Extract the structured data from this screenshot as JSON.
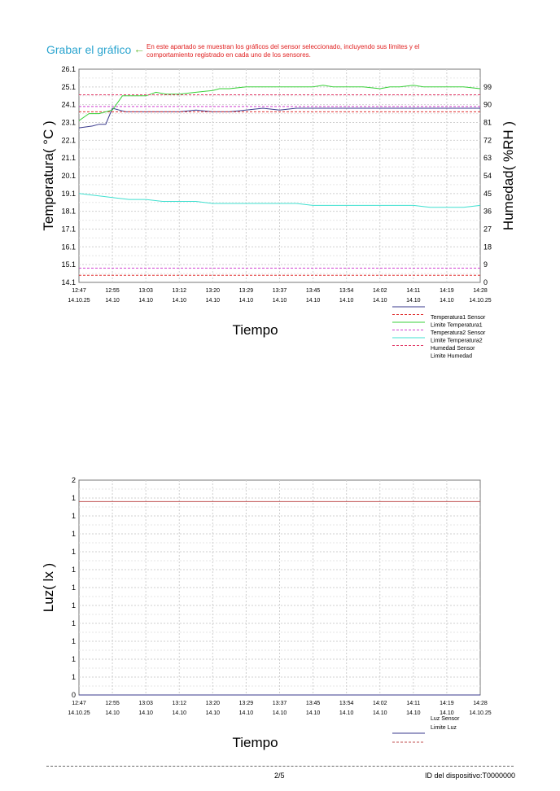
{
  "header": {
    "save_label": "Grabar el gráfico",
    "hint": "En este apartado se muestran los gráficos del sensor seleccionado, incluyendo sus límites y el comportamiento registrado en cada uno de los sensores."
  },
  "footer": {
    "page": "2/5",
    "device_id": "ID del dispositivo:T0000000"
  },
  "colors": {
    "temp1": "#3a3a8c",
    "temp1_limit": "#e03030",
    "temp2": "#3ad13a",
    "temp2_limit": "#d040d0",
    "hum": "#40e0d0",
    "hum_limit": "#e03060",
    "luz": "#3a3a8c",
    "luz_limit": "#c05050"
  },
  "chart_data": [
    {
      "type": "line",
      "xlabel": "Tiempo",
      "ylabel": "Temperatura( °C )",
      "y2label": "Humedad( %RH )",
      "ylim": [
        14.1,
        26.1
      ],
      "y2lim": [
        0,
        108
      ],
      "yticks": [
        "14.1",
        "15.1",
        "16.1",
        "17.1",
        "18.1",
        "19.1",
        "20.1",
        "21.1",
        "22.1",
        "23.1",
        "24.1",
        "25.1",
        "26.1"
      ],
      "y2ticks": [
        "0",
        "9",
        "18",
        "27",
        "36",
        "45",
        "54",
        "63",
        "72",
        "81",
        "90",
        "99"
      ],
      "xticks": [
        {
          "time": "12:47",
          "date": "14.10.25"
        },
        {
          "time": "12:55",
          "date": "14.10"
        },
        {
          "time": "13:03",
          "date": "14.10"
        },
        {
          "time": "13:12",
          "date": "14.10"
        },
        {
          "time": "13:20",
          "date": "14.10"
        },
        {
          "time": "13:29",
          "date": "14.10"
        },
        {
          "time": "13:37",
          "date": "14.10"
        },
        {
          "time": "13:45",
          "date": "14.10"
        },
        {
          "time": "13:54",
          "date": "14.10"
        },
        {
          "time": "14:02",
          "date": "14.10"
        },
        {
          "time": "14:11",
          "date": "14.10"
        },
        {
          "time": "14:19",
          "date": "14.10"
        },
        {
          "time": "14:28",
          "date": "14.10.25"
        }
      ],
      "grid": true,
      "legend": [
        "Temperatura1 Sensor",
        "Limite Temperatura1",
        "Temperatura2 Sensor",
        "Limite Temperatura2",
        "Humedad Sensor",
        "Limite Humedad"
      ],
      "series": [
        {
          "key": "temp1",
          "axis": "left",
          "style": "solid",
          "x": [
            0,
            0.4,
            0.6,
            0.8,
            1,
            1.2,
            1.4,
            1.6,
            2,
            2.5,
            3,
            3.5,
            4,
            4.5,
            5,
            5.5,
            6,
            6.5,
            7,
            7.5,
            8,
            8.5,
            9,
            9.5,
            10,
            10.5,
            11,
            11.5,
            12
          ],
          "y": [
            22.8,
            22.9,
            23.0,
            23.0,
            23.9,
            23.8,
            23.7,
            23.7,
            23.7,
            23.7,
            23.7,
            23.8,
            23.7,
            23.7,
            23.8,
            23.9,
            23.8,
            23.9,
            23.9,
            23.9,
            23.9,
            23.9,
            23.9,
            23.9,
            23.9,
            23.9,
            23.9,
            23.9,
            23.9
          ]
        },
        {
          "key": "temp1_limit",
          "axis": "left",
          "style": "dashed",
          "x": [
            0,
            12
          ],
          "y": [
            23.7,
            23.7
          ]
        },
        {
          "key": "temp2",
          "axis": "left",
          "style": "solid",
          "x": [
            0,
            0.3,
            0.6,
            1,
            1.3,
            1.6,
            2,
            2.3,
            2.6,
            3,
            3.5,
            4,
            4.2,
            4.5,
            5,
            5.5,
            6,
            6.5,
            7,
            7.3,
            7.6,
            8,
            8.5,
            9,
            9.3,
            9.6,
            10,
            10.3,
            10.6,
            11,
            11.5,
            12
          ],
          "y": [
            23.2,
            23.6,
            23.6,
            23.8,
            24.6,
            24.6,
            24.6,
            24.8,
            24.7,
            24.7,
            24.8,
            24.9,
            25.0,
            25.0,
            25.1,
            25.1,
            25.1,
            25.1,
            25.1,
            25.2,
            25.1,
            25.1,
            25.1,
            25.0,
            25.1,
            25.1,
            25.2,
            25.1,
            25.1,
            25.1,
            25.1,
            25.0
          ]
        },
        {
          "key": "temp2_limit",
          "axis": "left",
          "style": "dashed",
          "x": [
            0,
            12
          ],
          "y": [
            24.0,
            24.0
          ]
        },
        {
          "key": "hum",
          "axis": "right",
          "style": "solid",
          "x": [
            0,
            0.5,
            1,
            1.5,
            2,
            2.5,
            3,
            3.5,
            4,
            4.5,
            5,
            5.5,
            6,
            6.5,
            7,
            7.5,
            8,
            8.5,
            9,
            9.5,
            10,
            10.5,
            11,
            11.5,
            12
          ],
          "y": [
            45,
            44,
            43,
            42,
            42,
            41,
            41,
            41,
            40,
            40,
            40,
            40,
            40,
            40,
            39,
            39,
            39,
            39,
            39,
            39,
            39,
            38,
            38,
            38,
            39
          ]
        },
        {
          "key": "hum_limit",
          "axis": "right",
          "style": "dashed",
          "x": [
            0,
            12
          ],
          "y": [
            95,
            95
          ]
        },
        {
          "key": "extra_limit",
          "axis": "left",
          "style": "dashed",
          "x": [
            0,
            12
          ],
          "y": [
            14.9,
            14.9
          ]
        },
        {
          "key": "extra_limit2",
          "axis": "left",
          "style": "dashed",
          "x": [
            0,
            12
          ],
          "y": [
            14.5,
            14.5
          ]
        }
      ]
    },
    {
      "type": "line",
      "xlabel": "Tiempo",
      "ylabel": "Luz( lx )",
      "ylim": [
        0,
        2
      ],
      "yticks": [
        "0",
        "1",
        "1",
        "1",
        "1",
        "1",
        "1",
        "1",
        "1",
        "1",
        "1",
        "1",
        "2"
      ],
      "xticks": [
        {
          "time": "12:47",
          "date": "14.10.25"
        },
        {
          "time": "12:55",
          "date": "14.10"
        },
        {
          "time": "13:03",
          "date": "14.10"
        },
        {
          "time": "13:12",
          "date": "14.10"
        },
        {
          "time": "13:20",
          "date": "14.10"
        },
        {
          "time": "13:29",
          "date": "14.10"
        },
        {
          "time": "13:37",
          "date": "14.10"
        },
        {
          "time": "13:45",
          "date": "14.10"
        },
        {
          "time": "13:54",
          "date": "14.10"
        },
        {
          "time": "14:02",
          "date": "14.10"
        },
        {
          "time": "14:11",
          "date": "14.10"
        },
        {
          "time": "14:19",
          "date": "14.10"
        },
        {
          "time": "14:28",
          "date": "14.10.25"
        }
      ],
      "grid": true,
      "legend": [
        "Luz Sensor",
        "Limite Luz"
      ],
      "series": [
        {
          "key": "luz",
          "axis": "left",
          "style": "solid",
          "x": [
            0,
            12
          ],
          "y": [
            0,
            0
          ]
        },
        {
          "key": "luz_limit",
          "axis": "left",
          "style": "solid",
          "x": [
            0,
            12
          ],
          "y": [
            1.8,
            1.8
          ]
        }
      ]
    }
  ]
}
